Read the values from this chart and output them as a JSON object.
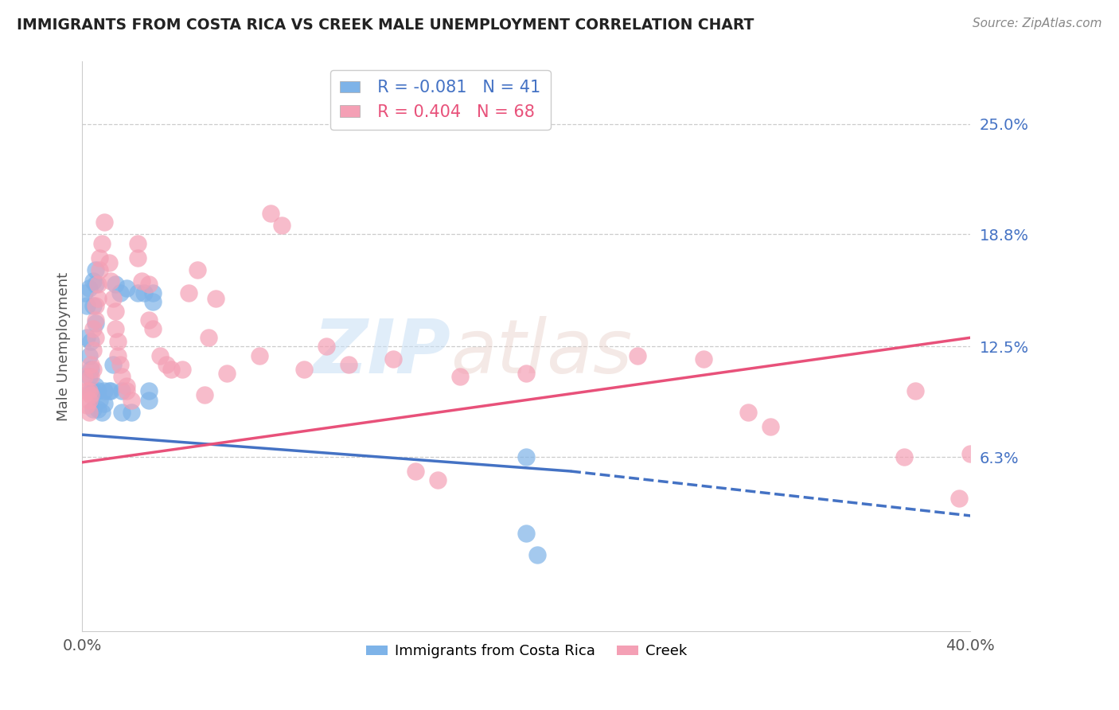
{
  "title": "IMMIGRANTS FROM COSTA RICA VS CREEK MALE UNEMPLOYMENT CORRELATION CHART",
  "source": "Source: ZipAtlas.com",
  "ylabel": "Male Unemployment",
  "xmin": 0.0,
  "xmax": 0.4,
  "ymin": -0.035,
  "ymax": 0.285,
  "yticks": [
    0.063,
    0.125,
    0.188,
    0.25
  ],
  "ytick_labels": [
    "6.3%",
    "12.5%",
    "18.8%",
    "25.0%"
  ],
  "xticks": [
    0.0,
    0.4
  ],
  "xtick_labels": [
    "0.0%",
    "40.0%"
  ],
  "legend_blue_r": "-0.081",
  "legend_blue_n": "41",
  "legend_pink_r": "0.404",
  "legend_pink_n": "68",
  "legend_label_blue": "Immigrants from Costa Rica",
  "legend_label_pink": "Creek",
  "blue_color": "#7EB3E8",
  "pink_color": "#F4A0B5",
  "line_blue_color": "#4472C4",
  "line_pink_color": "#E8517A",
  "watermark_zip": "ZIP",
  "watermark_atlas": "atlas",
  "blue_points": [
    [
      0.001,
      0.155
    ],
    [
      0.002,
      0.148
    ],
    [
      0.002,
      0.13
    ],
    [
      0.003,
      0.158
    ],
    [
      0.003,
      0.12
    ],
    [
      0.003,
      0.108
    ],
    [
      0.004,
      0.128
    ],
    [
      0.004,
      0.112
    ],
    [
      0.004,
      0.1
    ],
    [
      0.005,
      0.162
    ],
    [
      0.005,
      0.148
    ],
    [
      0.005,
      0.1
    ],
    [
      0.005,
      0.09
    ],
    [
      0.006,
      0.168
    ],
    [
      0.006,
      0.16
    ],
    [
      0.006,
      0.138
    ],
    [
      0.006,
      0.103
    ],
    [
      0.007,
      0.1
    ],
    [
      0.007,
      0.09
    ],
    [
      0.008,
      0.095
    ],
    [
      0.009,
      0.088
    ],
    [
      0.01,
      0.1
    ],
    [
      0.01,
      0.093
    ],
    [
      0.012,
      0.1
    ],
    [
      0.013,
      0.1
    ],
    [
      0.014,
      0.115
    ],
    [
      0.015,
      0.16
    ],
    [
      0.017,
      0.155
    ],
    [
      0.018,
      0.1
    ],
    [
      0.018,
      0.088
    ],
    [
      0.02,
      0.158
    ],
    [
      0.022,
      0.088
    ],
    [
      0.025,
      0.155
    ],
    [
      0.028,
      0.155
    ],
    [
      0.03,
      0.1
    ],
    [
      0.03,
      0.095
    ],
    [
      0.032,
      0.155
    ],
    [
      0.032,
      0.15
    ],
    [
      0.2,
      0.063
    ],
    [
      0.2,
      0.02
    ],
    [
      0.205,
      0.008
    ]
  ],
  "pink_points": [
    [
      0.001,
      0.108
    ],
    [
      0.002,
      0.1
    ],
    [
      0.002,
      0.092
    ],
    [
      0.003,
      0.1
    ],
    [
      0.003,
      0.095
    ],
    [
      0.003,
      0.088
    ],
    [
      0.004,
      0.115
    ],
    [
      0.004,
      0.108
    ],
    [
      0.004,
      0.098
    ],
    [
      0.005,
      0.135
    ],
    [
      0.005,
      0.123
    ],
    [
      0.005,
      0.112
    ],
    [
      0.006,
      0.148
    ],
    [
      0.006,
      0.14
    ],
    [
      0.006,
      0.13
    ],
    [
      0.007,
      0.16
    ],
    [
      0.007,
      0.152
    ],
    [
      0.008,
      0.175
    ],
    [
      0.008,
      0.168
    ],
    [
      0.009,
      0.183
    ],
    [
      0.01,
      0.195
    ],
    [
      0.012,
      0.172
    ],
    [
      0.013,
      0.162
    ],
    [
      0.014,
      0.152
    ],
    [
      0.015,
      0.145
    ],
    [
      0.015,
      0.135
    ],
    [
      0.016,
      0.128
    ],
    [
      0.016,
      0.12
    ],
    [
      0.017,
      0.115
    ],
    [
      0.018,
      0.108
    ],
    [
      0.02,
      0.103
    ],
    [
      0.02,
      0.1
    ],
    [
      0.022,
      0.095
    ],
    [
      0.025,
      0.183
    ],
    [
      0.025,
      0.175
    ],
    [
      0.027,
      0.162
    ],
    [
      0.03,
      0.16
    ],
    [
      0.03,
      0.14
    ],
    [
      0.032,
      0.135
    ],
    [
      0.035,
      0.12
    ],
    [
      0.038,
      0.115
    ],
    [
      0.04,
      0.112
    ],
    [
      0.045,
      0.112
    ],
    [
      0.048,
      0.155
    ],
    [
      0.052,
      0.168
    ],
    [
      0.055,
      0.098
    ],
    [
      0.057,
      0.13
    ],
    [
      0.06,
      0.152
    ],
    [
      0.065,
      0.11
    ],
    [
      0.08,
      0.12
    ],
    [
      0.085,
      0.2
    ],
    [
      0.09,
      0.193
    ],
    [
      0.1,
      0.112
    ],
    [
      0.11,
      0.125
    ],
    [
      0.12,
      0.115
    ],
    [
      0.14,
      0.118
    ],
    [
      0.15,
      0.055
    ],
    [
      0.16,
      0.05
    ],
    [
      0.17,
      0.108
    ],
    [
      0.2,
      0.11
    ],
    [
      0.25,
      0.12
    ],
    [
      0.28,
      0.118
    ],
    [
      0.3,
      0.088
    ],
    [
      0.31,
      0.08
    ],
    [
      0.37,
      0.063
    ],
    [
      0.375,
      0.1
    ],
    [
      0.4,
      0.065
    ],
    [
      0.395,
      0.04
    ]
  ],
  "blue_line_solid": {
    "x0": 0.0,
    "y0": 0.0755,
    "x1": 0.22,
    "y1": 0.055
  },
  "blue_line_dashed": {
    "x0": 0.22,
    "y0": 0.055,
    "x1": 0.4,
    "y1": 0.03
  },
  "pink_line": {
    "x0": 0.0,
    "y0": 0.06,
    "x1": 0.4,
    "y1": 0.13
  }
}
